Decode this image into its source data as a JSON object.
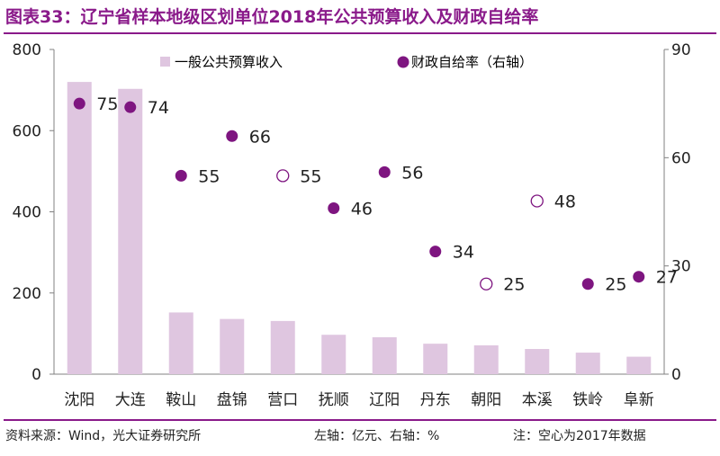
{
  "header": {
    "title": "图表33：辽宁省样本地级区划单位2018年公共预算收入及财政自给率"
  },
  "footer": {
    "source": "资料来源：Wind，光大证券研究所",
    "axis_note": "左轴：亿元、右轴：%",
    "hollow_note": "注：空心为2017年数据"
  },
  "colors": {
    "bar": "#dfc6e0",
    "dot": "#7e1580",
    "accent": "#8a1a8a"
  },
  "chart_data": {
    "type": "bar",
    "categories": [
      "沈阳",
      "大连",
      "鞍山",
      "盘锦",
      "营口",
      "抚顺",
      "辽阳",
      "丹东",
      "朝阳",
      "本溪",
      "铁岭",
      "阜新"
    ],
    "series": [
      {
        "name": "一般公共预算收入",
        "type": "bar",
        "axis": "left",
        "values": [
          720,
          703,
          152,
          136,
          131,
          97,
          91,
          75,
          71,
          62,
          53,
          43
        ]
      },
      {
        "name": "财政自给率（右轴）",
        "type": "scatter",
        "axis": "right",
        "values": [
          75,
          74,
          55,
          66,
          55,
          46,
          56,
          34,
          25,
          48,
          25,
          27
        ],
        "hollow": [
          false,
          false,
          false,
          false,
          true,
          false,
          false,
          false,
          true,
          true,
          false,
          false
        ],
        "labels": [
          "75",
          "74",
          "55",
          "66",
          "55",
          "46",
          "56",
          "34",
          "25",
          "48",
          "25",
          "27"
        ]
      }
    ],
    "ylim_left": [
      0,
      800
    ],
    "yticks_left": [
      "0",
      "200",
      "400",
      "600",
      "800"
    ],
    "ylim_right": [
      0,
      90
    ],
    "yticks_right": [
      "0",
      "30",
      "60",
      "90"
    ],
    "legend_position": "top",
    "grid": false
  }
}
